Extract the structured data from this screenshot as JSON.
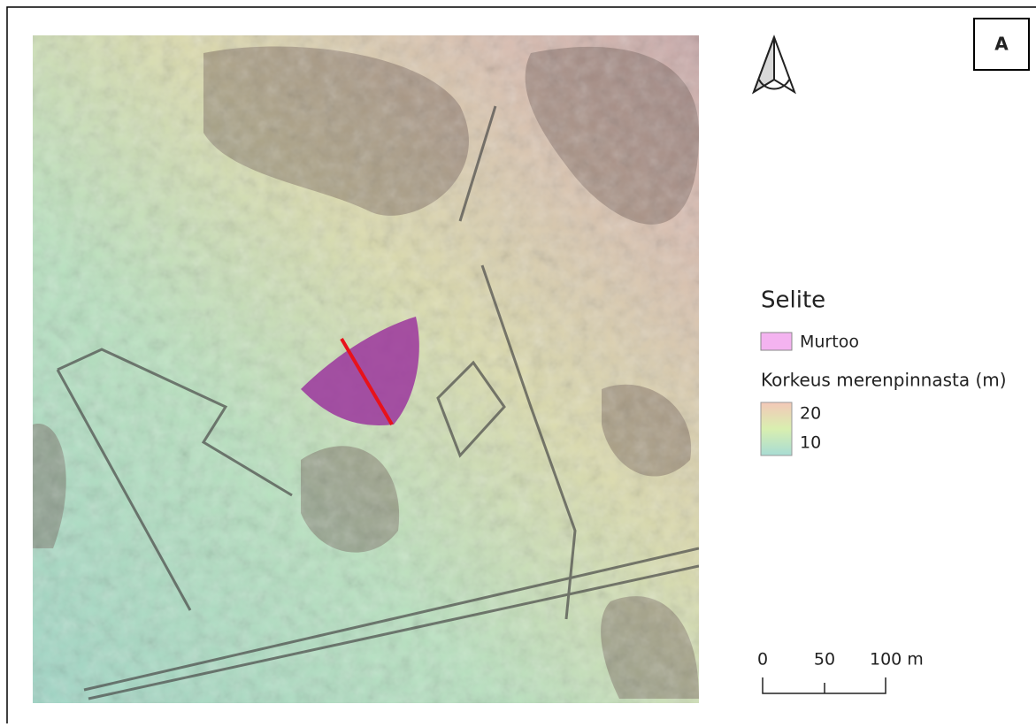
{
  "panel_label": "A",
  "legend": {
    "title": "Selite",
    "items": [
      {
        "label": "Murtoo",
        "color": "#f4b3f0"
      }
    ],
    "ramp": {
      "title": "Korkeus merenpinnasta (m)",
      "labels": [
        "20",
        "10"
      ],
      "colors": [
        "#f3c8b8",
        "#d9efb0",
        "#a8dcd4"
      ]
    }
  },
  "scale_bar": {
    "labels": [
      "0",
      "50",
      "100 m"
    ]
  }
}
